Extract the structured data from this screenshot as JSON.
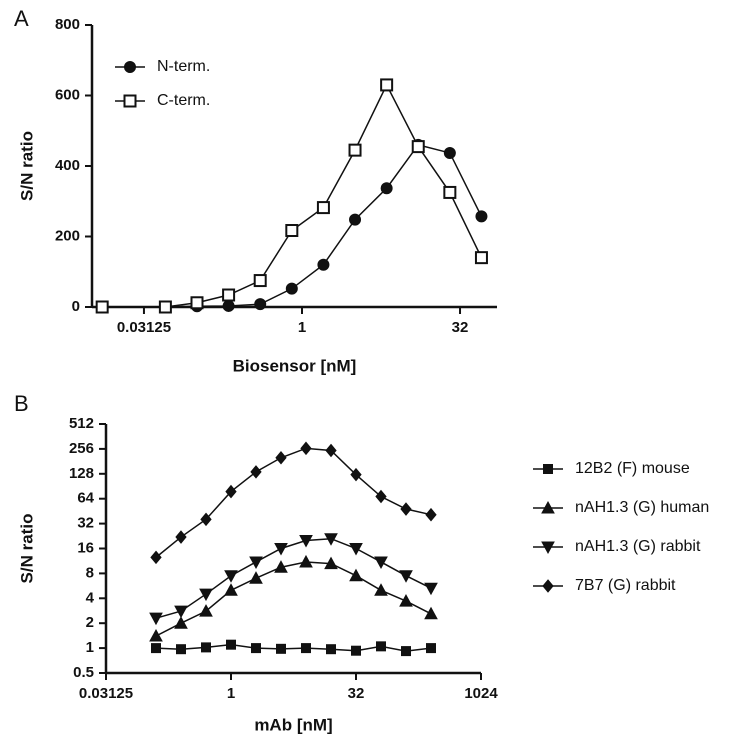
{
  "chart_data": [
    {
      "type": "line",
      "panel_label": "A",
      "xlabel": "Biosensor [nM]",
      "ylabel": "S/N ratio",
      "xscale": "log",
      "yscale": "linear",
      "xlim": [
        0.01,
        72
      ],
      "xticks": [
        0.03125,
        1,
        32
      ],
      "ylim": [
        0,
        800
      ],
      "yticks": [
        0,
        200,
        400,
        600,
        800
      ],
      "legend": "upper left",
      "x": [
        0.0125,
        0.05,
        0.1,
        0.2,
        0.4,
        0.8,
        1.6,
        3.2,
        6.4,
        12.8,
        25.6,
        51.2
      ],
      "series": [
        {
          "name": "N-term.",
          "color": "#111111",
          "marker": "circle",
          "marker_fill": "filled",
          "values": [
            0,
            0,
            2,
            3,
            8,
            52,
            120,
            248,
            337,
            460,
            437,
            257
          ]
        },
        {
          "name": "C-term.",
          "color": "#111111",
          "marker": "square",
          "marker_fill": "open",
          "values": [
            0,
            0,
            12,
            34,
            75,
            217,
            282,
            445,
            630,
            455,
            325,
            140
          ]
        }
      ]
    },
    {
      "type": "line",
      "panel_label": "B",
      "xlabel": "mAb [nM]",
      "ylabel": "S/N ratio",
      "xscale": "log",
      "yscale": "log",
      "xlim": [
        0.03125,
        1024
      ],
      "xticks": [
        0.03125,
        1,
        32,
        1024
      ],
      "ylim": [
        0.5,
        512
      ],
      "yticks": [
        0.5,
        1,
        2,
        4,
        8,
        16,
        32,
        64,
        128,
        256,
        512
      ],
      "legend": "right",
      "x": [
        0.125,
        0.25,
        0.5,
        1,
        2,
        4,
        8,
        16,
        32,
        64,
        128,
        256
      ],
      "series": [
        {
          "name": "12B2  (F) mouse",
          "color": "#111111",
          "marker": "square",
          "marker_fill": "filled",
          "values": [
            1,
            0.97,
            1.02,
            1.1,
            1.0,
            0.98,
            1.0,
            0.97,
            0.93,
            1.05,
            0.92,
            1.0
          ]
        },
        {
          "name": "nAH1.3 (G) human",
          "color": "#111111",
          "marker": "triangle",
          "marker_fill": "filled",
          "values": [
            1.4,
            2,
            2.8,
            5,
            7,
            9.5,
            11,
            10.5,
            7.5,
            5,
            3.7,
            2.6
          ]
        },
        {
          "name": "nAH1.3 (G) rabbit",
          "color": "#111111",
          "marker": "triangle-down",
          "marker_fill": "filled",
          "values": [
            2.3,
            2.8,
            4.5,
            7.5,
            11,
            16,
            20,
            21,
            16,
            11,
            7.5,
            5.3
          ]
        },
        {
          "name": "7B7 (G) rabbit",
          "color": "#111111",
          "marker": "diamond",
          "marker_fill": "filled",
          "values": [
            12.5,
            22,
            36,
            78,
            135,
            200,
            260,
            245,
            125,
            68,
            48,
            41
          ]
        }
      ]
    }
  ]
}
